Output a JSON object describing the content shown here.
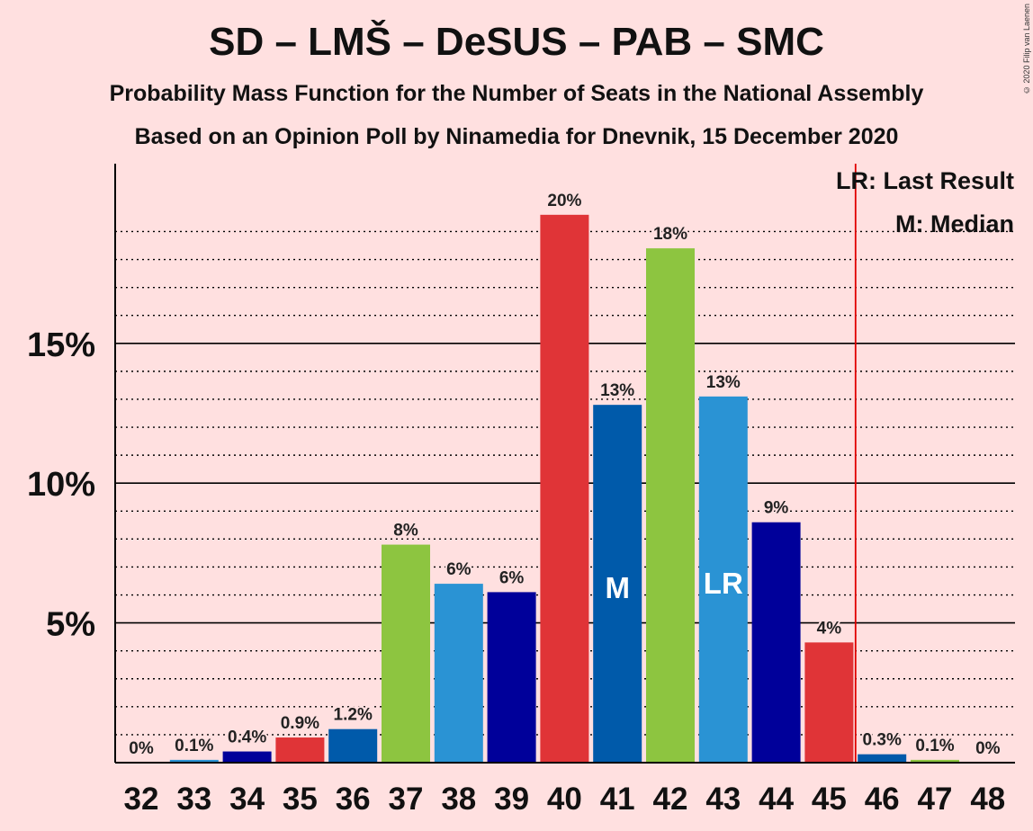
{
  "chart_data": {
    "type": "bar",
    "title": "SD – LMŠ – DeSUS – PAB – SMC",
    "subtitle": "Probability Mass Function for the Number of Seats in the National Assembly",
    "subtitle2": "Based on an Opinion Poll by Ninamedia for Dnevnik, 15 December 2020",
    "copyright": "© 2020 Filip van Laenen",
    "categories": [
      "32",
      "33",
      "34",
      "35",
      "36",
      "37",
      "38",
      "39",
      "40",
      "41",
      "42",
      "43",
      "44",
      "45",
      "46",
      "47",
      "48"
    ],
    "values": [
      0,
      0.1,
      0.4,
      0.9,
      1.2,
      7.8,
      6.4,
      6.1,
      19.6,
      12.8,
      18.4,
      13.1,
      8.6,
      4.3,
      0.3,
      0.1,
      0
    ],
    "data_labels": [
      "0%",
      "0.1%",
      "0.4%",
      "0.9%",
      "1.2%",
      "8%",
      "6%",
      "6%",
      "20%",
      "13%",
      "18%",
      "13%",
      "9%",
      "4%",
      "0.3%",
      "0.1%",
      "0%"
    ],
    "bar_colors": [
      "#E03437",
      "#2A93D4",
      "#00009A",
      "#E03437",
      "#005AAA",
      "#8DC540",
      "#2A93D4",
      "#00009A",
      "#E03437",
      "#005AAA",
      "#8DC540",
      "#2A93D4",
      "#00009A",
      "#E03437",
      "#005AAA",
      "#8DC540",
      "#2A93D4"
    ],
    "ytick_labels": [
      "5%",
      "10%",
      "15%"
    ],
    "ytick_values": [
      5,
      10,
      15
    ],
    "ylim": [
      0,
      21.4
    ],
    "grid": "dotted every 1%, solid every 5%",
    "median_seat": "41",
    "median_marker": "M",
    "last_result_seat": "43",
    "last_result_marker": "LR",
    "last_result_line_color": "#E00000",
    "legend": [
      "LR: Last Result",
      "M: Median"
    ],
    "legend_position": "top-right"
  }
}
